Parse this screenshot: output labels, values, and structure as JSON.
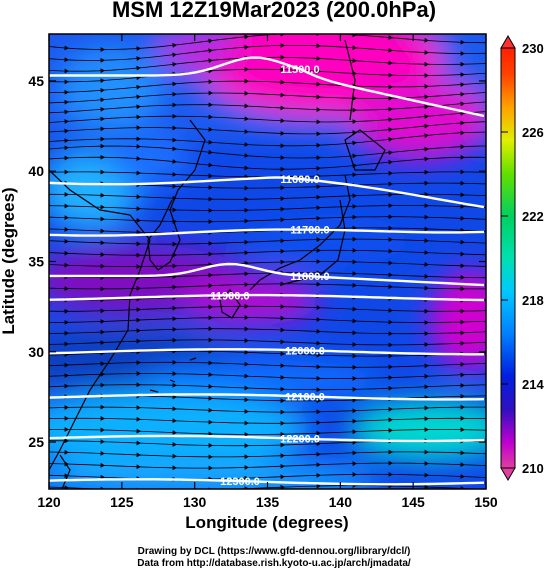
{
  "title": "MSM 12Z19Mar2023 (200.0hPa)",
  "x_axis": {
    "label": "Longitude (degrees)",
    "ticks": [
      120,
      125,
      130,
      135,
      140,
      145,
      150
    ],
    "range": [
      120,
      150
    ]
  },
  "y_axis": {
    "label": "Latitude  (degrees)",
    "ticks": [
      25,
      30,
      35,
      40,
      45
    ],
    "range": [
      22.4,
      47.6
    ]
  },
  "colorbar": {
    "min": 210,
    "max": 230,
    "tick_labels": [
      "230",
      "226",
      "222",
      "218",
      "214",
      "210"
    ],
    "colors": [
      "#e040a0",
      "#d000d0",
      "#4020c0",
      "#0020e0",
      "#0060ff",
      "#00c0ff",
      "#00e0c0",
      "#00d060",
      "#60e000",
      "#e0f000",
      "#ffa000",
      "#ff4000",
      "#ff2000"
    ]
  },
  "contours": [
    {
      "label": "11500.0",
      "lat": 45.3
    },
    {
      "label": "11600.0",
      "lat": 39.5
    },
    {
      "label": "11700.0",
      "lat": 36.6
    },
    {
      "label": "11800.0",
      "lat": 34.2
    },
    {
      "label": "11900.0",
      "lat": 33.0
    },
    {
      "label": "12000.0",
      "lat": 30.0
    },
    {
      "label": "12100.0",
      "lat": 27.5
    },
    {
      "label": "12200.0",
      "lat": 25.2
    },
    {
      "label": "12300.0",
      "lat": 22.8
    }
  ],
  "credits": [
    "Drawing by DCL (https://www.gfd-dennou.org/library/dcl/)",
    "Data from http://database.rish.kyoto-u.ac.jp/arch/jmadata/"
  ],
  "colors": {
    "contour": "#ffffff",
    "coast": "#000000",
    "arrow": "#000000"
  }
}
